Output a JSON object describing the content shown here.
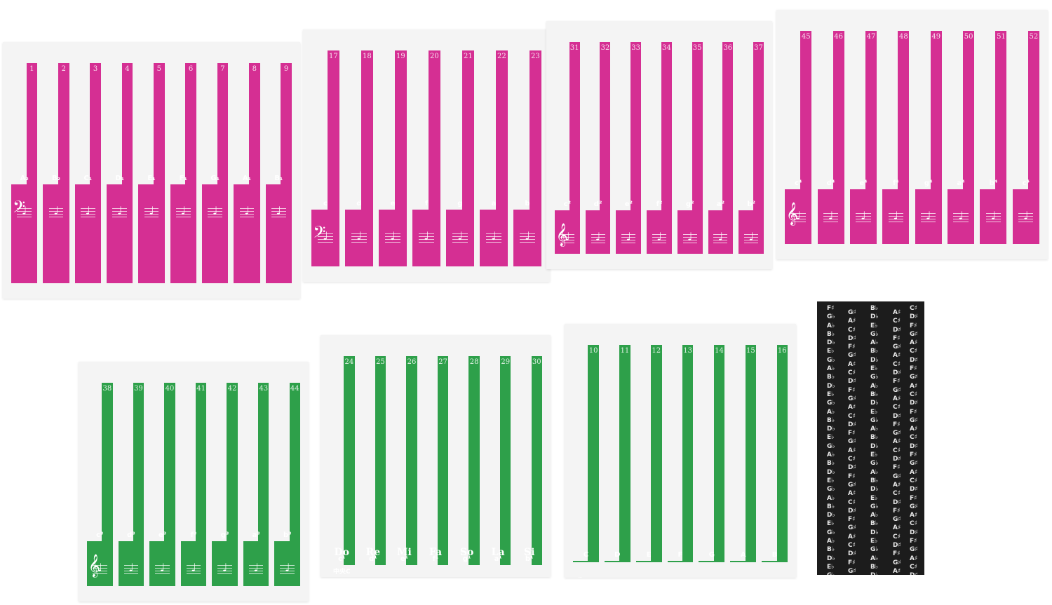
{
  "colors": {
    "pink": "#d52f93",
    "green": "#2ea04a",
    "strip": "#1c1c1c",
    "paper": "#f4f4f4"
  },
  "icons": {
    "bass_clef": "bass-clef-icon",
    "treble_clef": "treble-clef-icon",
    "note": "quarter-note-icon"
  },
  "sheets": [
    {
      "id": "sheet-1",
      "color": "pink",
      "clef": "bass",
      "keys": [
        {
          "num": "1",
          "note": "A₂"
        },
        {
          "num": "2",
          "note": "B₂"
        },
        {
          "num": "3",
          "note": "C₁"
        },
        {
          "num": "4",
          "note": "D₁"
        },
        {
          "num": "5",
          "note": "E₁"
        },
        {
          "num": "6",
          "note": "F₁"
        },
        {
          "num": "7",
          "note": "G₁"
        },
        {
          "num": "8",
          "note": "A₁"
        },
        {
          "num": "9",
          "note": "B₁"
        }
      ]
    },
    {
      "id": "sheet-2",
      "color": "pink",
      "clef": "bass",
      "keys": [
        {
          "num": "17",
          "note": "c"
        },
        {
          "num": "18",
          "note": "d"
        },
        {
          "num": "19",
          "note": "e"
        },
        {
          "num": "20",
          "note": "f"
        },
        {
          "num": "21",
          "note": "g"
        },
        {
          "num": "22",
          "note": "a"
        },
        {
          "num": "23",
          "note": "b"
        }
      ]
    },
    {
      "id": "sheet-3",
      "color": "pink",
      "clef": "treble",
      "keys": [
        {
          "num": "31",
          "note": "c²"
        },
        {
          "num": "32",
          "note": "d²"
        },
        {
          "num": "33",
          "note": "e²"
        },
        {
          "num": "34",
          "note": "f²"
        },
        {
          "num": "35",
          "note": "g²"
        },
        {
          "num": "36",
          "note": "a²"
        },
        {
          "num": "37",
          "note": "b²"
        }
      ]
    },
    {
      "id": "sheet-4",
      "color": "pink",
      "clef": "treble",
      "keys": [
        {
          "num": "45",
          "note": "c⁴"
        },
        {
          "num": "46",
          "note": "d⁴"
        },
        {
          "num": "47",
          "note": "e⁴"
        },
        {
          "num": "48",
          "note": "f⁴"
        },
        {
          "num": "49",
          "note": "g⁴"
        },
        {
          "num": "50",
          "note": "a⁴"
        },
        {
          "num": "51",
          "note": "b⁴"
        },
        {
          "num": "52",
          "note": "c⁵"
        }
      ]
    },
    {
      "id": "sheet-5",
      "color": "green",
      "clef": "treble",
      "keys": [
        {
          "num": "38",
          "note": "c³"
        },
        {
          "num": "39",
          "note": "d³"
        },
        {
          "num": "40",
          "note": "e³"
        },
        {
          "num": "41",
          "note": "f³"
        },
        {
          "num": "42",
          "note": "g³"
        },
        {
          "num": "43",
          "note": "a³"
        },
        {
          "num": "44",
          "note": "b³"
        }
      ]
    },
    {
      "id": "sheet-6",
      "color": "green",
      "clef": "treble",
      "middle_c": "中央C",
      "keys": [
        {
          "num": "24",
          "note": "c¹",
          "solf": "Do"
        },
        {
          "num": "25",
          "note": "d¹",
          "solf": "Re"
        },
        {
          "num": "26",
          "note": "e¹",
          "solf": "Mi"
        },
        {
          "num": "27",
          "note": "f¹",
          "solf": "Fa"
        },
        {
          "num": "28",
          "note": "g¹",
          "solf": "So"
        },
        {
          "num": "29",
          "note": "a¹",
          "solf": "La"
        },
        {
          "num": "30",
          "note": "b¹",
          "solf": "Si"
        }
      ]
    },
    {
      "id": "sheet-7",
      "color": "green",
      "clef": "bass",
      "keys": [
        {
          "num": "10",
          "note": "C"
        },
        {
          "num": "11",
          "note": "D"
        },
        {
          "num": "12",
          "note": "E"
        },
        {
          "num": "13",
          "note": "F"
        },
        {
          "num": "14",
          "note": "G"
        },
        {
          "num": "15",
          "note": "A"
        },
        {
          "num": "16",
          "note": "B"
        }
      ]
    }
  ],
  "black_strip": {
    "columns": [
      [
        "F♯",
        "G♭",
        "A♭",
        "B♭",
        "D♭",
        "E♭",
        "G♭",
        "A♭",
        "B♭",
        "D♭",
        "E♭",
        "G♭",
        "A♭",
        "B♭",
        "D♭",
        "E♭",
        "G♭",
        "A♭",
        "B♭",
        "D♭",
        "E♭",
        "G♭",
        "A♭",
        "B♭",
        "D♭",
        "E♭",
        "G♭",
        "A♭",
        "B♭",
        "D♭",
        "E♭",
        "G♭",
        "A♭",
        "B♭"
      ],
      [
        "G♯",
        "A♯",
        "C♯",
        "D♯",
        "F♯",
        "G♯",
        "A♯",
        "C♯",
        "D♯",
        "F♯",
        "G♯",
        "A♯",
        "C♯",
        "D♯",
        "F♯",
        "G♯",
        "A♯",
        "C♯",
        "D♯",
        "F♯",
        "G♯",
        "A♯",
        "C♯",
        "D♯",
        "F♯",
        "G♯",
        "A♯",
        "C♯",
        "D♯",
        "F♯",
        "G♯",
        "A♯",
        "C♯"
      ],
      [
        "B♭",
        "D♭",
        "E♭",
        "G♭",
        "A♭",
        "B♭",
        "D♭",
        "E♭",
        "G♭",
        "A♭",
        "B♭",
        "D♭",
        "E♭",
        "G♭",
        "A♭",
        "B♭",
        "D♭",
        "E♭",
        "G♭",
        "A♭",
        "B♭",
        "D♭",
        "E♭",
        "G♭",
        "A♭",
        "B♭",
        "D♭",
        "E♭",
        "G♭",
        "A♭",
        "B♭",
        "D♭",
        "E♭"
      ],
      [
        "A♯",
        "C♯",
        "D♯",
        "F♯",
        "G♯",
        "A♯",
        "C♯",
        "D♯",
        "F♯",
        "G♯",
        "A♯",
        "C♯",
        "D♯",
        "F♯",
        "G♯",
        "A♯",
        "C♯",
        "D♯",
        "F♯",
        "G♯",
        "A♯",
        "C♯",
        "D♯",
        "F♯",
        "G♯",
        "A♯",
        "C♯",
        "D♯",
        "F♯",
        "G♯",
        "A♯",
        "C♯",
        "D♯"
      ],
      [
        "C♯",
        "D♯",
        "F♯",
        "G♯",
        "A♯",
        "C♯",
        "D♯",
        "F♯",
        "G♯",
        "A♯",
        "C♯",
        "D♯",
        "F♯",
        "G♯",
        "A♯",
        "C♯",
        "D♯",
        "F♯",
        "G♯",
        "A♯",
        "C♯",
        "D♯",
        "F♯",
        "G♯",
        "A♯",
        "C♯",
        "D♯",
        "F♯",
        "G♯",
        "A♯",
        "C♯",
        "D♯",
        "F♯"
      ]
    ]
  }
}
